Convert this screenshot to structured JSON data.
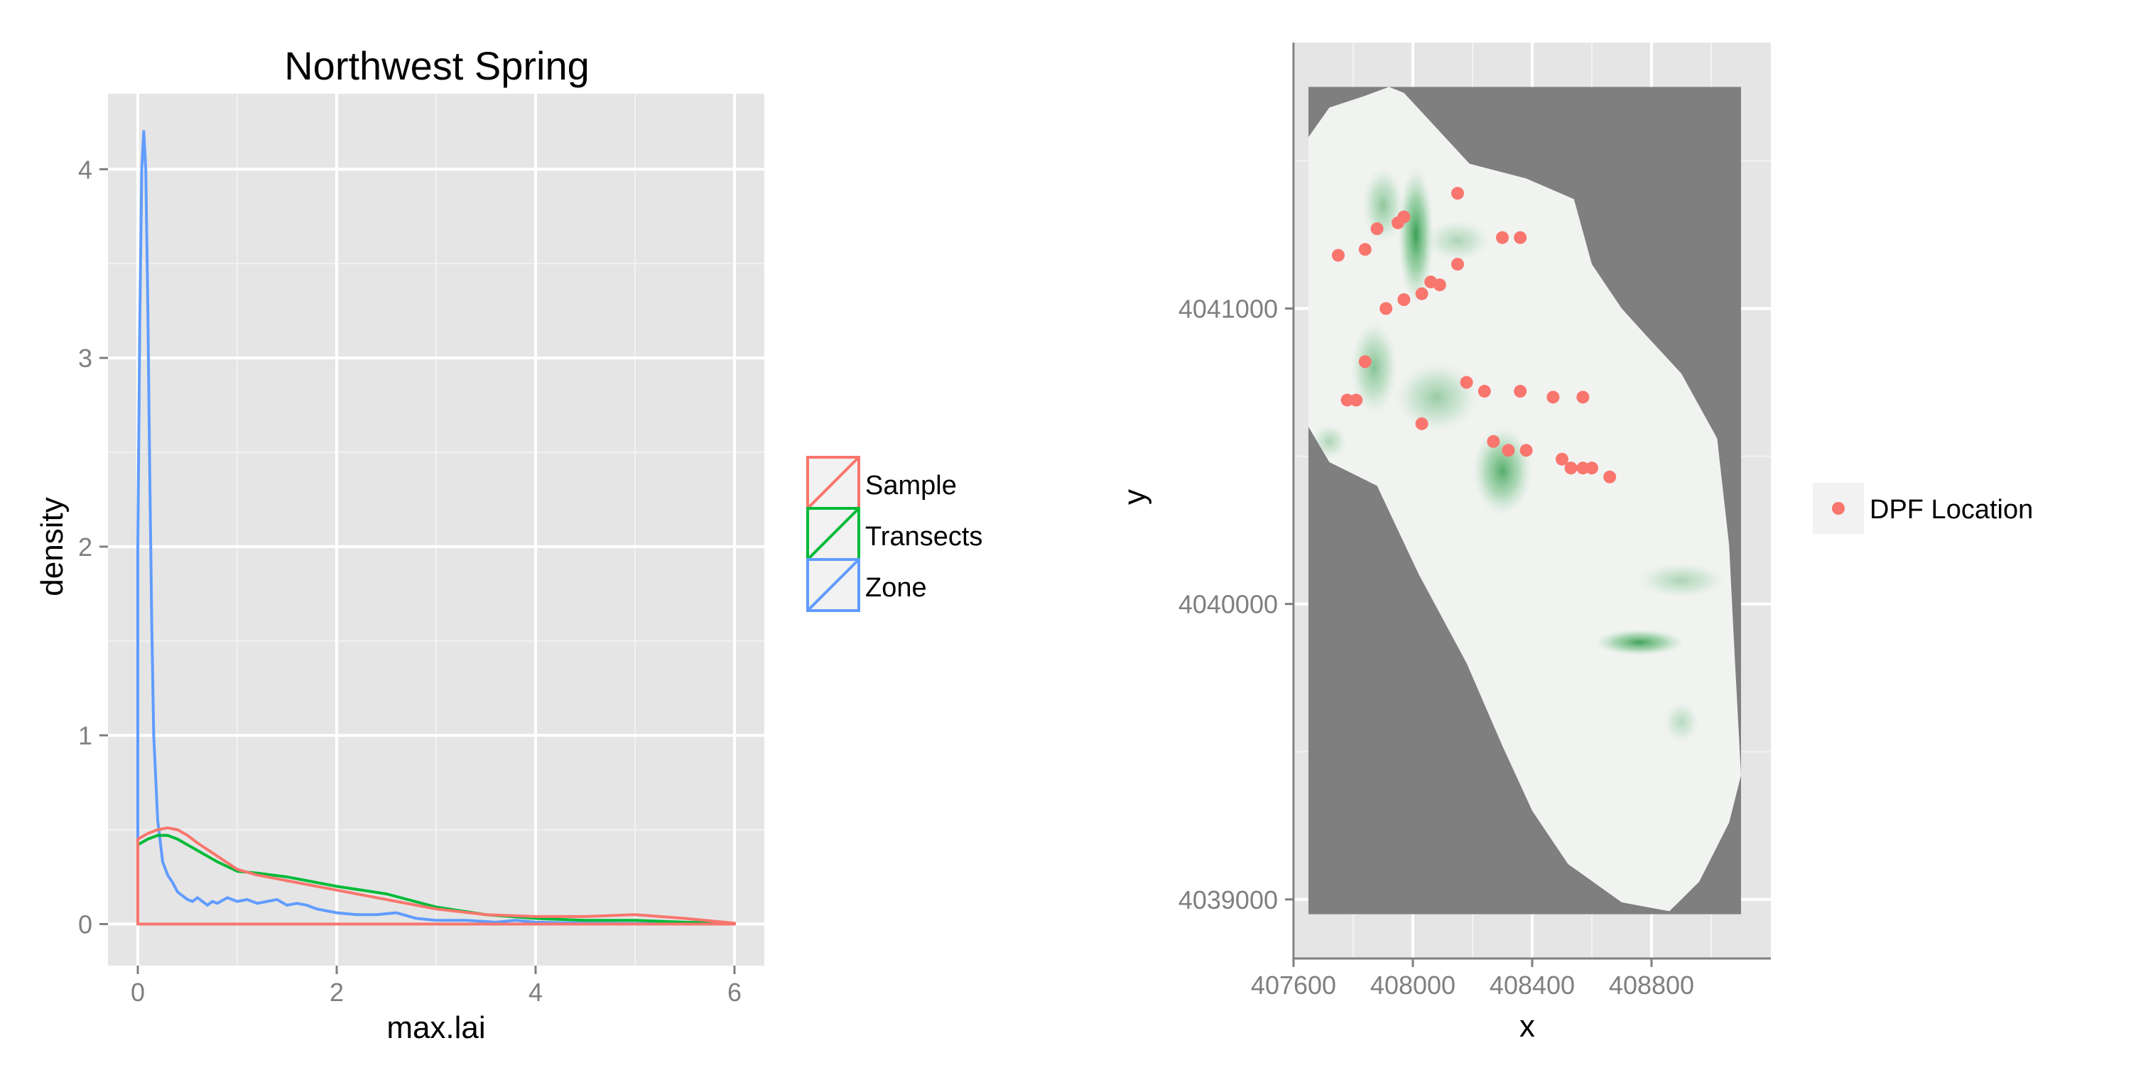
{
  "colors": {
    "sample": "#F8766D",
    "transects": "#00BA38",
    "zone": "#619CFF",
    "panel_bg": "#E5E5E5",
    "grid": "#FFFFFF",
    "outside_zone": "#7F7F7F",
    "zone_fill": "#F1F3F1",
    "vegetation_high": "#2E9A48",
    "point": "#F8766D"
  },
  "chart_data": [
    {
      "type": "line",
      "title": "Northwest Spring",
      "xlabel": "max.lai",
      "ylabel": "density",
      "xlim": [
        -0.3,
        6.3
      ],
      "ylim": [
        -0.22,
        4.4
      ],
      "x_ticks": [
        "0",
        "2",
        "4",
        "6"
      ],
      "y_ticks": [
        "0",
        "1",
        "2",
        "3",
        "4"
      ],
      "grid": true,
      "legend": {
        "position": "right",
        "entries": [
          "Sample",
          "Transects",
          "Zone"
        ]
      },
      "series": [
        {
          "name": "Sample",
          "x": [
            0,
            0.1,
            0.2,
            0.3,
            0.4,
            0.5,
            0.6,
            0.8,
            1.0,
            1.2,
            1.5,
            2.0,
            2.5,
            3.0,
            3.5,
            4.0,
            4.5,
            5.0,
            5.5,
            6.0
          ],
          "y": [
            0.45,
            0.48,
            0.5,
            0.51,
            0.5,
            0.47,
            0.43,
            0.36,
            0.29,
            0.26,
            0.23,
            0.18,
            0.13,
            0.08,
            0.05,
            0.04,
            0.04,
            0.05,
            0.03,
            0.005
          ]
        },
        {
          "name": "Transects",
          "x": [
            0,
            0.1,
            0.2,
            0.3,
            0.4,
            0.5,
            0.6,
            0.8,
            1.0,
            1.2,
            1.5,
            2.0,
            2.5,
            3.0,
            3.5,
            4.0,
            4.5,
            5.0,
            5.5,
            6.0
          ],
          "y": [
            0.42,
            0.45,
            0.47,
            0.47,
            0.45,
            0.42,
            0.39,
            0.33,
            0.28,
            0.27,
            0.25,
            0.2,
            0.16,
            0.09,
            0.05,
            0.03,
            0.02,
            0.02,
            0.01,
            0.005
          ]
        },
        {
          "name": "Zone",
          "x": [
            0,
            0.02,
            0.04,
            0.06,
            0.08,
            0.1,
            0.12,
            0.14,
            0.16,
            0.2,
            0.25,
            0.3,
            0.35,
            0.4,
            0.5,
            0.55,
            0.6,
            0.7,
            0.75,
            0.8,
            0.9,
            1.0,
            1.1,
            1.2,
            1.3,
            1.4,
            1.5,
            1.6,
            1.7,
            1.8,
            2.0,
            2.2,
            2.4,
            2.6,
            2.8,
            3.0,
            3.3,
            3.6,
            3.8,
            4.0,
            4.5,
            5.0,
            6.0
          ],
          "y": [
            2.0,
            3.2,
            4.0,
            4.2,
            4.0,
            3.3,
            2.4,
            1.6,
            1.0,
            0.55,
            0.33,
            0.26,
            0.22,
            0.17,
            0.13,
            0.12,
            0.14,
            0.1,
            0.12,
            0.11,
            0.14,
            0.12,
            0.13,
            0.11,
            0.12,
            0.13,
            0.1,
            0.11,
            0.1,
            0.08,
            0.06,
            0.05,
            0.05,
            0.06,
            0.03,
            0.02,
            0.02,
            0.01,
            0.02,
            0.01,
            0.005,
            0.003,
            0.001
          ]
        }
      ]
    },
    {
      "type": "heatmap",
      "xlabel": "x",
      "ylabel": "y",
      "xlim": [
        407600,
        409200
      ],
      "ylim": [
        4038800,
        4041900
      ],
      "x_ticks": [
        "407600",
        "408000",
        "408400",
        "408800"
      ],
      "y_ticks": [
        "4039000",
        "4040000",
        "4041000"
      ],
      "grid": true,
      "legend": {
        "position": "right",
        "entries": [
          "DPF Location"
        ]
      },
      "raster_extent": {
        "x": [
          407650,
          409100
        ],
        "y": [
          4038950,
          4041750
        ]
      },
      "zone_boundary": [
        [
          407650,
          4041580
        ],
        [
          407720,
          4041680
        ],
        [
          407840,
          4041720
        ],
        [
          407920,
          4041750
        ],
        [
          407970,
          4041730
        ],
        [
          408080,
          4041610
        ],
        [
          408190,
          4041490
        ],
        [
          408380,
          4041440
        ],
        [
          408540,
          4041370
        ],
        [
          408600,
          4041150
        ],
        [
          408700,
          4041000
        ],
        [
          408790,
          4040900
        ],
        [
          408900,
          4040780
        ],
        [
          409020,
          4040560
        ],
        [
          409060,
          4040200
        ],
        [
          409080,
          4039800
        ],
        [
          409100,
          4039420
        ],
        [
          409060,
          4039260
        ],
        [
          408960,
          4039060
        ],
        [
          408860,
          4038960
        ],
        [
          408700,
          4038990
        ],
        [
          408520,
          4039120
        ],
        [
          408400,
          4039300
        ],
        [
          408300,
          4039520
        ],
        [
          408180,
          4039800
        ],
        [
          408020,
          4040100
        ],
        [
          407880,
          4040400
        ],
        [
          407720,
          4040480
        ],
        [
          407650,
          4040600
        ]
      ],
      "vegetation_patches": [
        {
          "x": 408010,
          "y": 4041250,
          "rx": 60,
          "ry": 230,
          "intensity": 0.95
        },
        {
          "x": 407900,
          "y": 4041350,
          "rx": 70,
          "ry": 130,
          "intensity": 0.5
        },
        {
          "x": 408150,
          "y": 4041230,
          "rx": 110,
          "ry": 70,
          "intensity": 0.35
        },
        {
          "x": 407870,
          "y": 4040800,
          "rx": 80,
          "ry": 160,
          "intensity": 0.55
        },
        {
          "x": 408080,
          "y": 4040700,
          "rx": 140,
          "ry": 120,
          "intensity": 0.45
        },
        {
          "x": 408300,
          "y": 4040450,
          "rx": 100,
          "ry": 150,
          "intensity": 0.8
        },
        {
          "x": 407720,
          "y": 4040550,
          "rx": 60,
          "ry": 60,
          "intensity": 0.35
        },
        {
          "x": 408760,
          "y": 4039870,
          "rx": 150,
          "ry": 45,
          "intensity": 0.9
        },
        {
          "x": 408900,
          "y": 4040080,
          "rx": 150,
          "ry": 60,
          "intensity": 0.35
        },
        {
          "x": 408900,
          "y": 4039600,
          "rx": 60,
          "ry": 70,
          "intensity": 0.3
        }
      ],
      "series": [
        {
          "name": "DPF Location",
          "x": [
            407750,
            407840,
            407880,
            407950,
            407970,
            408150,
            408300,
            408360,
            408150,
            407910,
            407970,
            408030,
            408060,
            408090,
            407840,
            407780,
            407810,
            408180,
            408240,
            408360,
            408470,
            408570,
            408030,
            408270,
            408320,
            408380,
            408500,
            408530,
            408570,
            408600,
            408660
          ],
          "y": [
            4041180,
            4041200,
            4041270,
            4041290,
            4041310,
            4041390,
            4041240,
            4041240,
            4041150,
            4041000,
            4041030,
            4041050,
            4041090,
            4041080,
            4040820,
            4040690,
            4040690,
            4040750,
            4040720,
            4040720,
            4040700,
            4040700,
            4040610,
            4040550,
            4040520,
            4040520,
            4040490,
            4040460,
            4040460,
            4040460,
            4040430
          ]
        }
      ]
    }
  ]
}
